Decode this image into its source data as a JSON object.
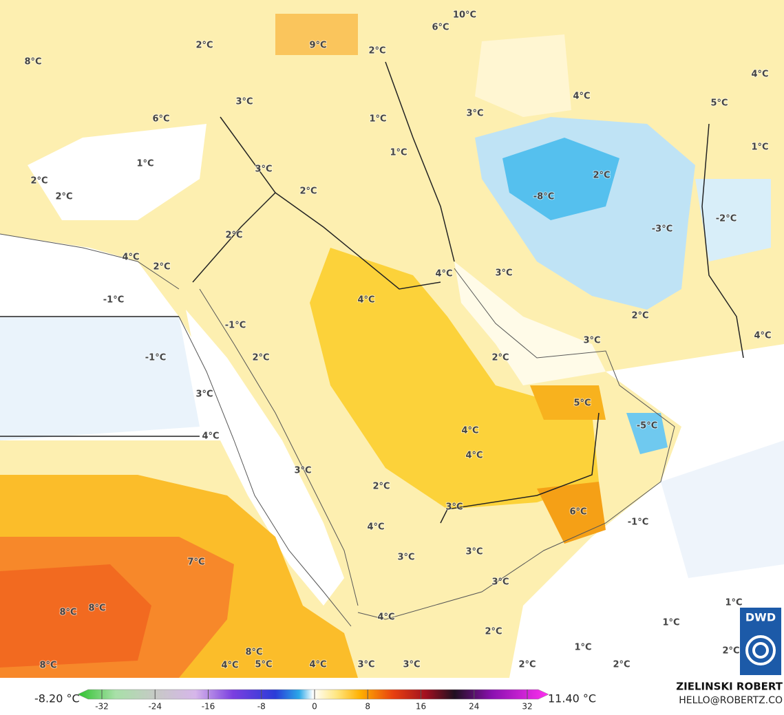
{
  "map": {
    "labels": [
      "10°C",
      "6°C",
      "9°C",
      "2°C",
      "2°C",
      "8°C",
      "4°C",
      "4°C",
      "3°C",
      "5°C",
      "3°C",
      "1°C",
      "6°C",
      "1°C",
      "1°C",
      "1°C",
      "3°C",
      "2°C",
      "2°C",
      "2°C",
      "2°C",
      "-8°C",
      "-2°C",
      "-3°C",
      "2°C",
      "4°C",
      "2°C",
      "4°C",
      "3°C",
      "4°C",
      "-1°C",
      "-1°C",
      "2°C",
      "3°C",
      "4°C",
      "-1°C",
      "2°C",
      "2°C",
      "3°C",
      "5°C",
      "-5°C",
      "4°C",
      "4°C",
      "4°C",
      "3°C",
      "2°C",
      "3°C",
      "6°C",
      "-1°C",
      "4°C",
      "3°C",
      "3°C",
      "7°C",
      "3°C",
      "8°C",
      "8°C",
      "4°C",
      "1°C",
      "1°C",
      "2°C",
      "1°C",
      "2°C",
      "8°C",
      "8°C",
      "4°C",
      "5°C",
      "4°C",
      "3°C",
      "3°C",
      "2°C",
      "2°C"
    ],
    "logo": "DWD"
  },
  "legend": {
    "min_label": "-8.20 °C",
    "max_label": "11.40 °C",
    "ticks": [
      -32,
      -24,
      -16,
      -8,
      0,
      8,
      16,
      24,
      32
    ]
  },
  "credit": {
    "name": "ZIELINSKI ROBERT",
    "contact": "HELLO@ROBERTZ.CO"
  }
}
